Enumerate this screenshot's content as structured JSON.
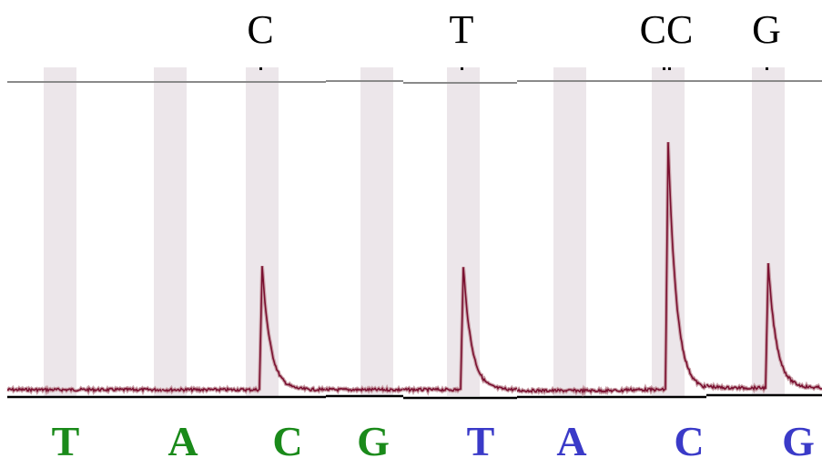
{
  "chart_data": {
    "type": "line",
    "title": "",
    "xlabel": "",
    "ylabel": "",
    "ylim": [
      0,
      2.2
    ],
    "grid": false,
    "legend": "none",
    "colors": {
      "trace": "#7a1030",
      "trace_highlight": "#c9a0a8",
      "band": "#ece6ea",
      "baseline": "#000000",
      "reference_line": "#8a8a8a",
      "green": "#1a8a1a",
      "blue": "#3a3ac8"
    },
    "dispensations": [
      {
        "nucleotide": "T",
        "color": "green",
        "signal": 0.0,
        "call": ""
      },
      {
        "nucleotide": "A",
        "color": "green",
        "signal": 0.0,
        "call": ""
      },
      {
        "nucleotide": "C",
        "color": "green",
        "signal": 1.0,
        "call": "C"
      },
      {
        "nucleotide": "G",
        "color": "green",
        "signal": 0.0,
        "call": ""
      },
      {
        "nucleotide": "T",
        "color": "blue",
        "signal": 1.0,
        "call": "T"
      },
      {
        "nucleotide": "A",
        "color": "blue",
        "signal": 0.0,
        "call": ""
      },
      {
        "nucleotide": "C",
        "color": "blue",
        "signal": 2.0,
        "call": "CC"
      },
      {
        "nucleotide": "G",
        "color": "blue",
        "signal": 1.0,
        "call": "G"
      }
    ]
  }
}
